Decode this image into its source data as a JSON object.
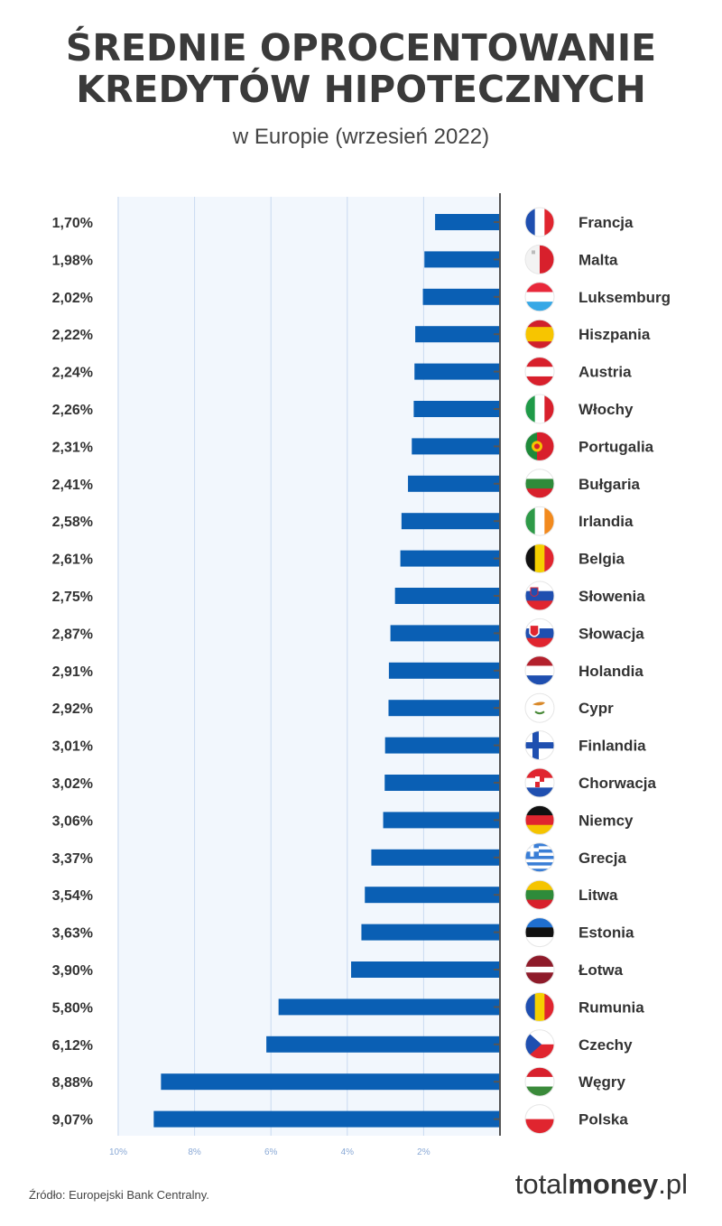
{
  "header": {
    "title_line1": "ŚREDNIE OPROCENTOWANIE",
    "title_line2": "KREDYTÓW HIPOTECZNYCH",
    "subtitle": "w Europie (wrzesień 2022)"
  },
  "footer": {
    "source": "Źródło: Europejski Bank Centralny.",
    "brand_light": "total",
    "brand_bold": "money",
    "brand_suffix": ".pl"
  },
  "colors": {
    "bar": "#0a5fb4",
    "plot_bg": "#f2f7fd",
    "grid": "#c9daf0",
    "axis": "#555555"
  },
  "chart_data": {
    "type": "bar",
    "orientation": "horizontal",
    "direction": "bars extend leftward from zero",
    "categories": [
      "Francja",
      "Malta",
      "Luksemburg",
      "Hiszpania",
      "Austria",
      "Włochy",
      "Portugalia",
      "Bułgaria",
      "Irlandia",
      "Belgia",
      "Słowenia",
      "Słowacja",
      "Holandia",
      "Cypr",
      "Finlandia",
      "Chorwacja",
      "Niemcy",
      "Grecja",
      "Litwa",
      "Estonia",
      "Łotwa",
      "Rumunia",
      "Czechy",
      "Węgry",
      "Polska"
    ],
    "values": [
      1.7,
      1.98,
      2.02,
      2.22,
      2.24,
      2.26,
      2.31,
      2.41,
      2.58,
      2.61,
      2.75,
      2.87,
      2.91,
      2.92,
      3.01,
      3.02,
      3.06,
      3.37,
      3.54,
      3.63,
      3.9,
      5.8,
      6.12,
      8.88,
      9.07
    ],
    "value_labels": [
      "1,70%",
      "1,98%",
      "2,02%",
      "2,22%",
      "2,24%",
      "2,26%",
      "2,31%",
      "2,41%",
      "2,58%",
      "2,61%",
      "2,75%",
      "2,87%",
      "2,91%",
      "2,92%",
      "3,01%",
      "3,02%",
      "3,06%",
      "3,37%",
      "3,54%",
      "3,63%",
      "3,90%",
      "5,80%",
      "6,12%",
      "8,88%",
      "9,07%"
    ],
    "flags": [
      "france-flag-icon",
      "malta-flag-icon",
      "luxembourg-flag-icon",
      "spain-flag-icon",
      "austria-flag-icon",
      "italy-flag-icon",
      "portugal-flag-icon",
      "bulgaria-flag-icon",
      "ireland-flag-icon",
      "belgium-flag-icon",
      "slovenia-flag-icon",
      "slovakia-flag-icon",
      "netherlands-flag-icon",
      "cyprus-flag-icon",
      "finland-flag-icon",
      "croatia-flag-icon",
      "germany-flag-icon",
      "greece-flag-icon",
      "lithuania-flag-icon",
      "estonia-flag-icon",
      "latvia-flag-icon",
      "romania-flag-icon",
      "czechia-flag-icon",
      "hungary-flag-icon",
      "poland-flag-icon"
    ],
    "x_ticks": [
      10,
      8,
      6,
      4,
      2
    ],
    "x_tick_labels": [
      "10%",
      "8%",
      "6%",
      "4%",
      "2%"
    ],
    "xlim": [
      0,
      10
    ],
    "grid": true
  }
}
